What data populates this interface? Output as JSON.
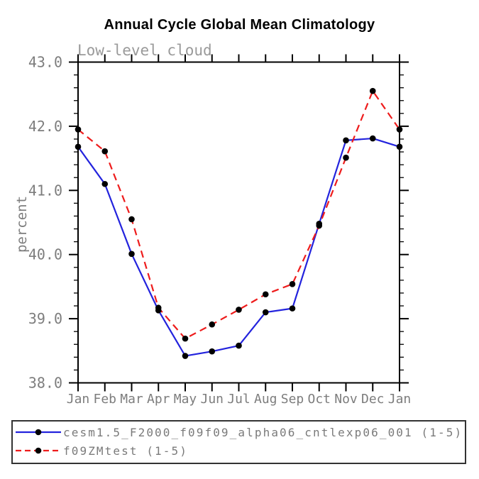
{
  "page": {
    "background": "#ffffff"
  },
  "chart_data": {
    "type": "line",
    "title": "Annual Cycle Global Mean Climatology",
    "subtitle": "Low-level cloud",
    "ylabel": "percent",
    "xlabel": "",
    "categories": [
      "Jan",
      "Feb",
      "Mar",
      "Apr",
      "May",
      "Jun",
      "Jul",
      "Aug",
      "Sep",
      "Oct",
      "Nov",
      "Dec",
      "Jan"
    ],
    "ylim": [
      38.0,
      43.0
    ],
    "y_ticks": [
      38.0,
      39.0,
      40.0,
      41.0,
      42.0,
      43.0
    ],
    "y_minor_step": 0.2,
    "y_tick_decimals": 1,
    "grid": false,
    "legend_position": "bottom-box",
    "axis_color": "#000000",
    "tick_label_color": "#7d7d7d",
    "subtitle_color": "#9a9a9a",
    "legend_text_color": "#7a7a7a",
    "marker": "filled-circle",
    "marker_color": "#000000",
    "series": [
      {
        "name": "cesm1.5_F2000_f09f09_alpha06_cntlexp06_001 (1-5)",
        "color": "#2323dd",
        "line_style": "solid",
        "values": [
          41.68,
          41.1,
          40.01,
          39.13,
          38.42,
          38.49,
          38.58,
          39.1,
          39.16,
          40.48,
          41.78,
          41.81,
          41.68
        ]
      },
      {
        "name": "f09ZMtest (1-5)",
        "color": "#ee1c1c",
        "line_style": "dashed",
        "values": [
          41.95,
          41.61,
          40.55,
          39.17,
          38.69,
          38.91,
          39.14,
          39.38,
          39.54,
          40.45,
          41.51,
          42.55,
          41.95
        ]
      }
    ]
  }
}
